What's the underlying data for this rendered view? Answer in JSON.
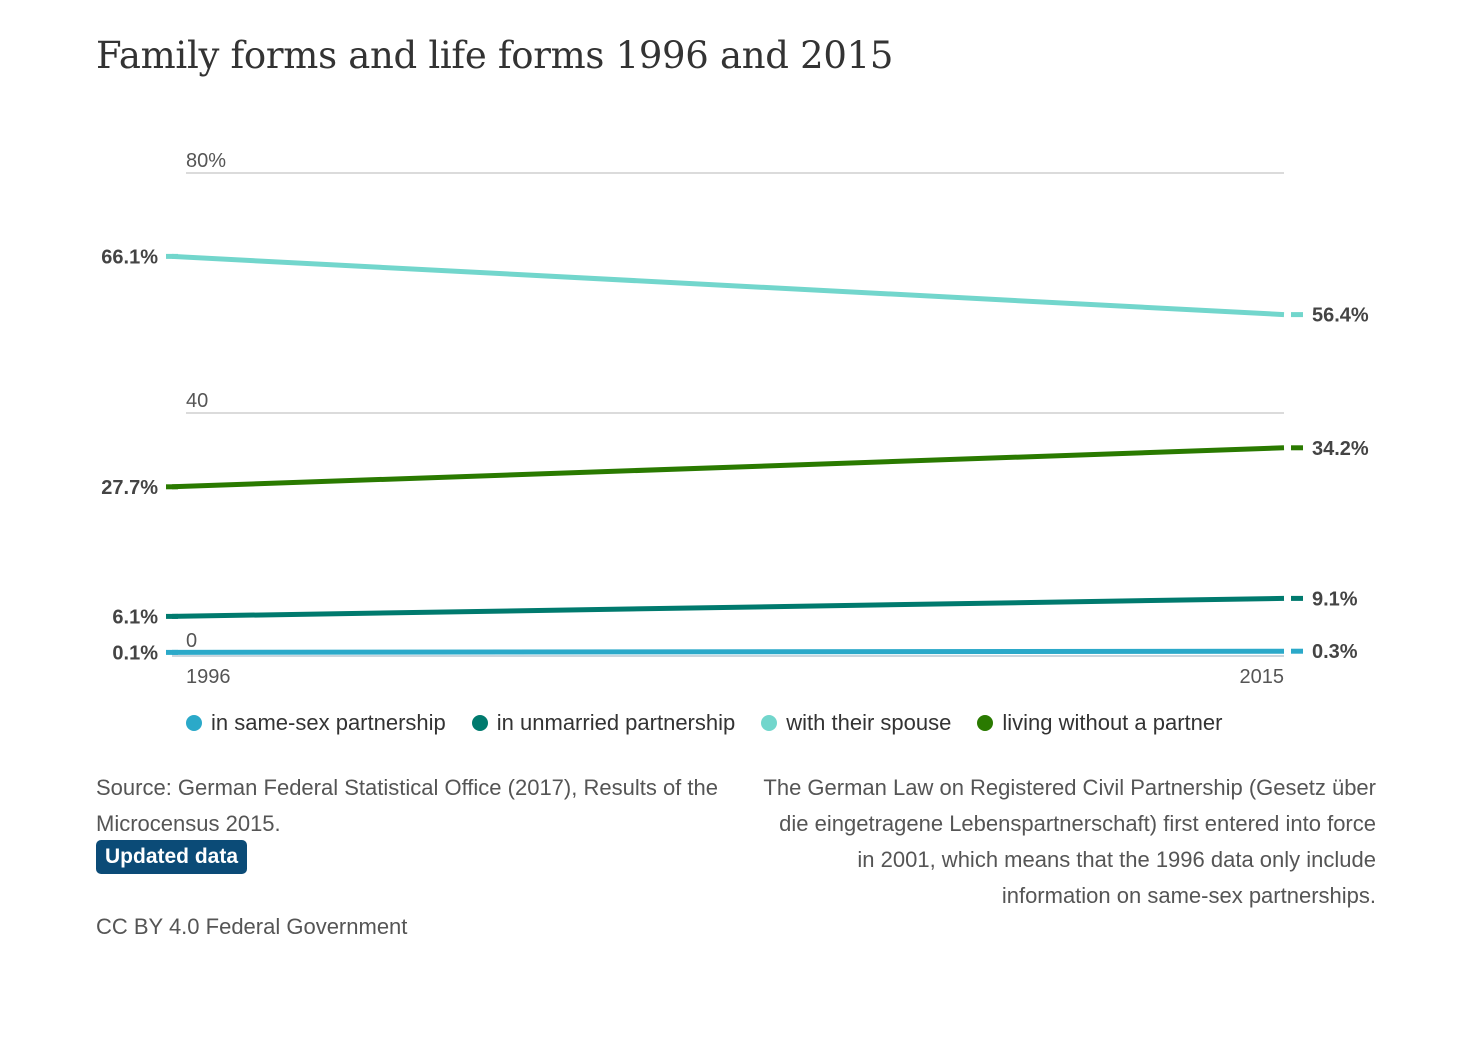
{
  "title": "Family forms and life forms 1996 and 2015",
  "chart_data": {
    "type": "line",
    "x": [
      "1996",
      "2015"
    ],
    "ylim": [
      0,
      80
    ],
    "yticks": [
      {
        "value": 80,
        "label": "80%"
      },
      {
        "value": 40,
        "label": "40"
      },
      {
        "value": 0,
        "label": "0"
      }
    ],
    "grid": true,
    "legend_position": "bottom",
    "series": [
      {
        "name": "in same-sex partnership",
        "color": "#2ba9c9",
        "values": [
          0.1,
          0.3
        ],
        "labels": [
          "0.1%",
          "0.3%"
        ]
      },
      {
        "name": "in unmarried partnership",
        "color": "#007a6e",
        "values": [
          6.1,
          9.1
        ],
        "labels": [
          "6.1%",
          "9.1%"
        ]
      },
      {
        "name": "with their spouse",
        "color": "#72d6cc",
        "values": [
          66.1,
          56.4
        ],
        "labels": [
          "66.1%",
          "56.4%"
        ]
      },
      {
        "name": "living without a partner",
        "color": "#2a7a00",
        "values": [
          27.7,
          34.2
        ],
        "labels": [
          "27.7%",
          "34.2%"
        ]
      }
    ]
  },
  "source_text": "Source: German Federal Statistical Office (2017), Results of the Microcensus 2015.",
  "badge_label": "Updated data",
  "license_text": "CC BY 4.0 Federal Government",
  "note_text": "The German Law on Registered Civil Partnership (Gesetz über die eingetragene Lebenspartnerschaft) first entered into force in 2001, which means that the 1996 data only include information on same-sex partnerships."
}
